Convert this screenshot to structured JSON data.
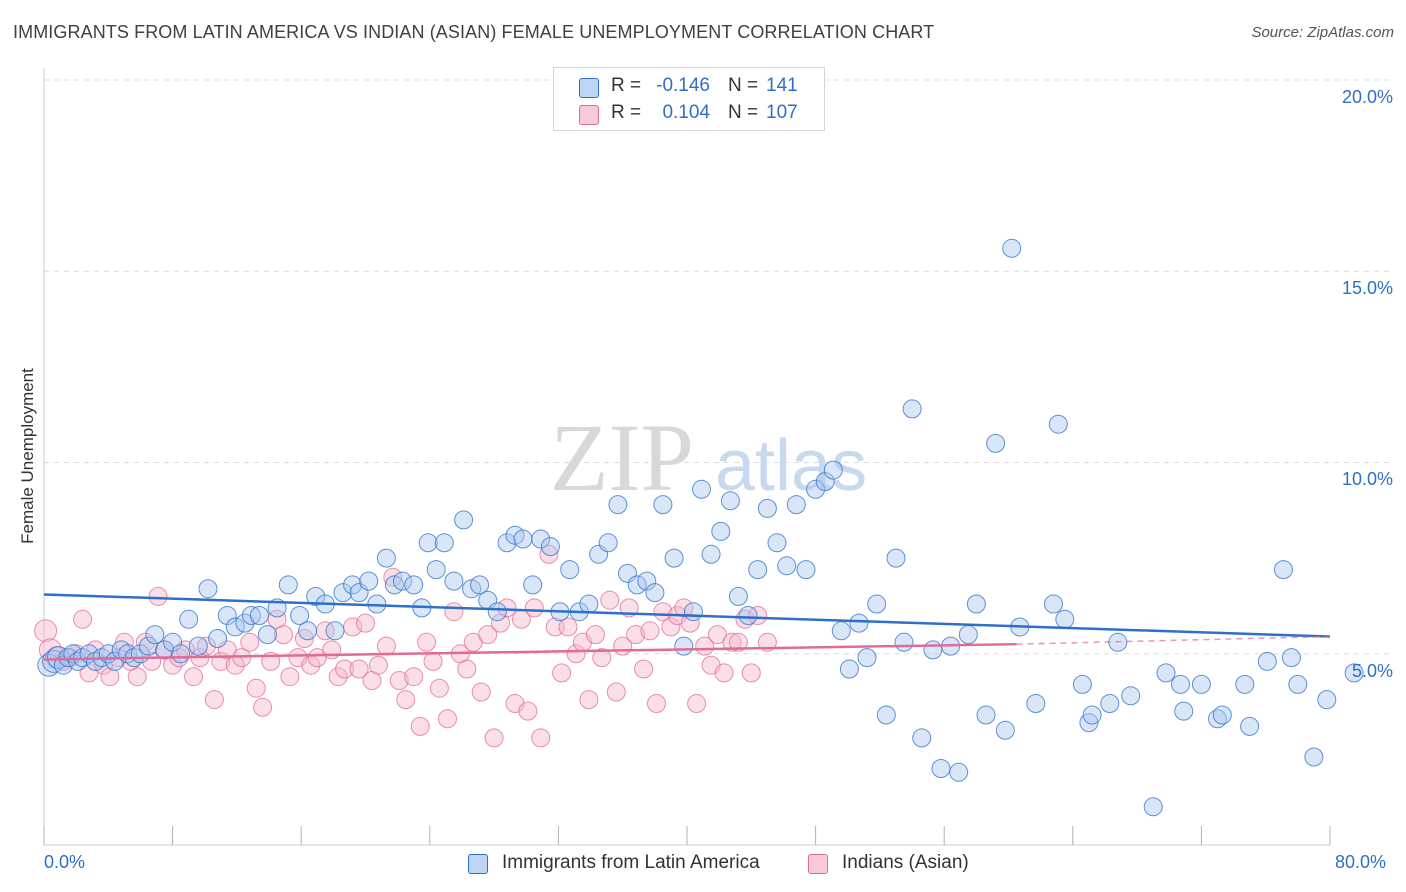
{
  "title": "IMMIGRANTS FROM LATIN AMERICA VS INDIAN (ASIAN) FEMALE UNEMPLOYMENT CORRELATION CHART",
  "source": "Source: ZipAtlas.com",
  "watermark": {
    "zip": "ZIP",
    "atlas": "atlas"
  },
  "colors": {
    "blue": "#2f6fca",
    "blue_fill": "#a9c8ef",
    "pink": "#e06b97",
    "pink_fill": "#f5b8cd",
    "grid": "#dcdcdc"
  },
  "legend": {
    "rows": [
      {
        "r_label": "R =",
        "r_value": "-0.146",
        "n_label": "N =",
        "n_value": "141"
      },
      {
        "r_label": "R =",
        "r_value": "0.104",
        "n_label": "N =",
        "n_value": "107"
      }
    ]
  },
  "chart_data": {
    "type": "scatter",
    "title": "IMMIGRANTS FROM LATIN AMERICA VS INDIAN (ASIAN) FEMALE UNEMPLOYMENT CORRELATION CHART",
    "xlabel": "",
    "ylabel": "Female Unemployment",
    "xlim": [
      0,
      80
    ],
    "ylim": [
      0,
      20
    ],
    "x_tick_labels": [
      "0.0%",
      "80.0%"
    ],
    "y_tick_labels": [
      "5.0%",
      "10.0%",
      "15.0%",
      "20.0%"
    ],
    "y_ticks": [
      5,
      10,
      15,
      20
    ],
    "grid": true,
    "legend_position": "top-center",
    "series": [
      {
        "name": "Immigrants from Latin America",
        "color": "#2f6fca",
        "r": -0.146,
        "n": 141,
        "trend": {
          "x": [
            0,
            80
          ],
          "y": [
            6.55,
            5.45
          ]
        },
        "points": [
          [
            0.3,
            4.7
          ],
          [
            0.6,
            4.8
          ],
          [
            0.9,
            4.9
          ],
          [
            1.2,
            4.7
          ],
          [
            1.5,
            4.9
          ],
          [
            1.8,
            5.0
          ],
          [
            2.1,
            4.8
          ],
          [
            2.4,
            4.9
          ],
          [
            2.8,
            5.0
          ],
          [
            3.2,
            4.8
          ],
          [
            3.6,
            4.9
          ],
          [
            4.0,
            5.0
          ],
          [
            4.4,
            4.8
          ],
          [
            4.8,
            5.1
          ],
          [
            5.2,
            5.0
          ],
          [
            5.6,
            4.9
          ],
          [
            6.0,
            5.0
          ],
          [
            6.5,
            5.2
          ],
          [
            6.9,
            5.5
          ],
          [
            7.5,
            5.1
          ],
          [
            8.0,
            5.3
          ],
          [
            8.5,
            5.0
          ],
          [
            9.0,
            5.9
          ],
          [
            9.6,
            5.2
          ],
          [
            10.2,
            6.7
          ],
          [
            10.8,
            5.4
          ],
          [
            11.4,
            6.0
          ],
          [
            11.9,
            5.7
          ],
          [
            12.5,
            5.8
          ],
          [
            12.9,
            6.0
          ],
          [
            13.4,
            6.0
          ],
          [
            13.9,
            5.5
          ],
          [
            14.5,
            6.2
          ],
          [
            15.2,
            6.8
          ],
          [
            15.9,
            6.0
          ],
          [
            16.4,
            5.6
          ],
          [
            16.9,
            6.5
          ],
          [
            17.5,
            6.3
          ],
          [
            18.1,
            5.6
          ],
          [
            18.6,
            6.6
          ],
          [
            19.2,
            6.8
          ],
          [
            19.6,
            6.6
          ],
          [
            20.2,
            6.9
          ],
          [
            20.7,
            6.3
          ],
          [
            21.3,
            7.5
          ],
          [
            21.8,
            6.8
          ],
          [
            22.3,
            6.9
          ],
          [
            23.0,
            6.8
          ],
          [
            23.5,
            6.2
          ],
          [
            23.9,
            7.9
          ],
          [
            24.4,
            7.2
          ],
          [
            24.9,
            7.9
          ],
          [
            25.5,
            6.9
          ],
          [
            26.1,
            8.5
          ],
          [
            26.6,
            6.7
          ],
          [
            27.1,
            6.8
          ],
          [
            27.6,
            6.4
          ],
          [
            28.2,
            6.1
          ],
          [
            28.8,
            7.9
          ],
          [
            29.3,
            8.1
          ],
          [
            29.8,
            8.0
          ],
          [
            30.4,
            6.8
          ],
          [
            30.9,
            8.0
          ],
          [
            31.5,
            7.8
          ],
          [
            32.1,
            6.1
          ],
          [
            32.7,
            7.2
          ],
          [
            33.3,
            6.1
          ],
          [
            33.9,
            6.3
          ],
          [
            34.5,
            7.6
          ],
          [
            35.1,
            7.9
          ],
          [
            35.7,
            8.9
          ],
          [
            36.3,
            7.1
          ],
          [
            36.9,
            6.8
          ],
          [
            37.5,
            6.9
          ],
          [
            38.0,
            6.6
          ],
          [
            38.5,
            8.9
          ],
          [
            39.2,
            7.5
          ],
          [
            39.8,
            5.2
          ],
          [
            40.4,
            6.1
          ],
          [
            40.9,
            9.3
          ],
          [
            41.5,
            7.6
          ],
          [
            42.1,
            8.2
          ],
          [
            42.7,
            9.0
          ],
          [
            43.2,
            6.5
          ],
          [
            43.8,
            6.0
          ],
          [
            44.4,
            7.2
          ],
          [
            45.0,
            8.8
          ],
          [
            45.6,
            7.9
          ],
          [
            46.2,
            7.3
          ],
          [
            46.8,
            8.9
          ],
          [
            47.4,
            7.2
          ],
          [
            48.0,
            9.3
          ],
          [
            48.6,
            9.5
          ],
          [
            49.1,
            9.8
          ],
          [
            49.6,
            5.6
          ],
          [
            50.1,
            4.6
          ],
          [
            50.7,
            5.8
          ],
          [
            51.2,
            4.9
          ],
          [
            51.8,
            6.3
          ],
          [
            52.4,
            3.4
          ],
          [
            53.0,
            7.5
          ],
          [
            53.5,
            5.3
          ],
          [
            54.0,
            11.4
          ],
          [
            54.6,
            2.8
          ],
          [
            55.3,
            5.1
          ],
          [
            55.8,
            2.0
          ],
          [
            56.4,
            5.2
          ],
          [
            56.9,
            1.9
          ],
          [
            57.5,
            5.5
          ],
          [
            58.0,
            6.3
          ],
          [
            58.6,
            3.4
          ],
          [
            59.2,
            10.5
          ],
          [
            59.8,
            3.0
          ],
          [
            60.2,
            15.6
          ],
          [
            60.7,
            5.7
          ],
          [
            61.7,
            3.7
          ],
          [
            62.8,
            6.3
          ],
          [
            63.1,
            11.0
          ],
          [
            63.5,
            5.9
          ],
          [
            64.6,
            4.2
          ],
          [
            65.0,
            3.2
          ],
          [
            65.2,
            3.4
          ],
          [
            66.3,
            3.7
          ],
          [
            66.8,
            5.3
          ],
          [
            67.6,
            3.9
          ],
          [
            69.0,
            1.0
          ],
          [
            69.8,
            4.5
          ],
          [
            70.7,
            4.2
          ],
          [
            70.9,
            3.5
          ],
          [
            72.0,
            4.2
          ],
          [
            73.0,
            3.3
          ],
          [
            73.3,
            3.4
          ],
          [
            74.7,
            4.2
          ],
          [
            75.0,
            3.1
          ],
          [
            76.1,
            4.8
          ],
          [
            77.1,
            7.2
          ],
          [
            77.6,
            4.9
          ],
          [
            78.0,
            4.2
          ],
          [
            79.0,
            2.3
          ],
          [
            79.8,
            3.8
          ],
          [
            81.5,
            4.5
          ]
        ]
      },
      {
        "name": "Indians (Asian)",
        "color": "#e06b97",
        "r": 0.104,
        "n": 107,
        "trend": {
          "x": [
            0,
            60.5
          ],
          "y": [
            4.85,
            5.25
          ],
          "dash_to": [
            80,
            5.45
          ]
        },
        "points": [
          [
            0.1,
            5.6
          ],
          [
            0.4,
            5.1
          ],
          [
            0.8,
            4.9
          ],
          [
            1.2,
            4.8
          ],
          [
            1.6,
            4.9
          ],
          [
            2.0,
            5.0
          ],
          [
            2.4,
            5.9
          ],
          [
            2.8,
            4.5
          ],
          [
            3.2,
            5.1
          ],
          [
            3.7,
            4.7
          ],
          [
            4.1,
            4.4
          ],
          [
            4.6,
            4.9
          ],
          [
            5.0,
            5.3
          ],
          [
            5.4,
            4.8
          ],
          [
            5.8,
            4.4
          ],
          [
            6.3,
            5.3
          ],
          [
            6.7,
            4.8
          ],
          [
            7.1,
            6.5
          ],
          [
            7.5,
            5.1
          ],
          [
            8.0,
            4.7
          ],
          [
            8.4,
            4.9
          ],
          [
            8.8,
            5.1
          ],
          [
            9.3,
            4.4
          ],
          [
            9.7,
            4.9
          ],
          [
            10.1,
            5.2
          ],
          [
            10.6,
            3.8
          ],
          [
            11.0,
            4.8
          ],
          [
            11.4,
            5.1
          ],
          [
            11.9,
            4.7
          ],
          [
            12.3,
            4.9
          ],
          [
            12.8,
            5.3
          ],
          [
            13.2,
            4.1
          ],
          [
            13.6,
            3.6
          ],
          [
            14.1,
            4.8
          ],
          [
            14.5,
            5.9
          ],
          [
            14.9,
            5.5
          ],
          [
            15.3,
            4.4
          ],
          [
            15.8,
            4.9
          ],
          [
            16.2,
            5.4
          ],
          [
            16.6,
            4.7
          ],
          [
            17.0,
            4.9
          ],
          [
            17.5,
            5.6
          ],
          [
            17.9,
            5.1
          ],
          [
            18.3,
            4.4
          ],
          [
            18.7,
            4.6
          ],
          [
            19.2,
            5.7
          ],
          [
            19.6,
            4.6
          ],
          [
            20.0,
            5.8
          ],
          [
            20.4,
            4.3
          ],
          [
            20.8,
            4.7
          ],
          [
            21.3,
            5.2
          ],
          [
            21.7,
            7.0
          ],
          [
            22.1,
            4.3
          ],
          [
            22.5,
            3.8
          ],
          [
            23.0,
            4.4
          ],
          [
            23.4,
            3.1
          ],
          [
            23.8,
            5.3
          ],
          [
            24.2,
            4.8
          ],
          [
            24.6,
            4.1
          ],
          [
            25.1,
            3.3
          ],
          [
            25.5,
            6.1
          ],
          [
            25.9,
            5.0
          ],
          [
            26.3,
            4.6
          ],
          [
            26.7,
            5.3
          ],
          [
            27.2,
            4.0
          ],
          [
            27.6,
            5.5
          ],
          [
            28.0,
            2.8
          ],
          [
            28.4,
            5.8
          ],
          [
            28.8,
            6.2
          ],
          [
            29.3,
            3.7
          ],
          [
            29.7,
            5.9
          ],
          [
            30.1,
            3.5
          ],
          [
            30.5,
            6.2
          ],
          [
            30.9,
            2.8
          ],
          [
            31.4,
            7.6
          ],
          [
            31.8,
            5.7
          ],
          [
            32.2,
            4.5
          ],
          [
            32.6,
            5.7
          ],
          [
            33.1,
            5.0
          ],
          [
            33.5,
            5.3
          ],
          [
            33.9,
            3.8
          ],
          [
            34.3,
            5.5
          ],
          [
            34.7,
            4.9
          ],
          [
            35.2,
            6.4
          ],
          [
            35.6,
            4.0
          ],
          [
            36.0,
            5.2
          ],
          [
            36.4,
            6.2
          ],
          [
            36.8,
            5.5
          ],
          [
            37.3,
            4.6
          ],
          [
            37.7,
            5.6
          ],
          [
            38.1,
            3.7
          ],
          [
            38.5,
            6.1
          ],
          [
            39.0,
            5.7
          ],
          [
            39.4,
            6.0
          ],
          [
            39.8,
            6.2
          ],
          [
            40.2,
            5.8
          ],
          [
            40.6,
            3.7
          ],
          [
            41.1,
            5.2
          ],
          [
            41.5,
            4.7
          ],
          [
            41.9,
            5.5
          ],
          [
            42.3,
            4.5
          ],
          [
            42.8,
            5.3
          ],
          [
            43.2,
            5.3
          ],
          [
            43.6,
            5.9
          ],
          [
            44.0,
            4.5
          ],
          [
            44.4,
            6.0
          ],
          [
            45.0,
            5.3
          ]
        ]
      }
    ]
  },
  "axes": {
    "x_min_label": "0.0%",
    "x_max_label": "80.0%"
  },
  "bottom_legend": [
    {
      "label": "Immigrants from Latin America"
    },
    {
      "label": "Indians (Asian)"
    }
  ]
}
